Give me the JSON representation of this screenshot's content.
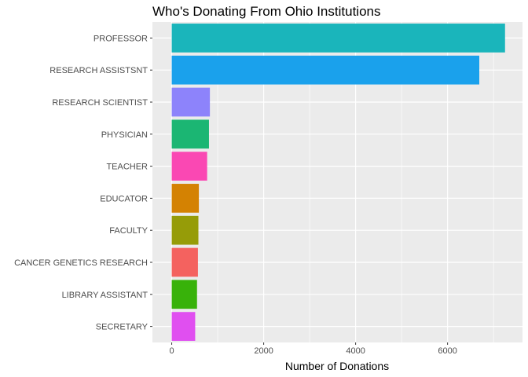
{
  "chart_data": {
    "type": "bar",
    "orientation": "horizontal",
    "title": "Who's Donating From Ohio Institutions",
    "xlabel": "Number of Donations",
    "ylabel": "",
    "xlim": [
      -420,
      7630
    ],
    "x_ticks": [
      0,
      2000,
      4000,
      6000
    ],
    "x_tick_labels": [
      "0",
      "2000",
      "4000",
      "6000"
    ],
    "grid": true,
    "legend": "none",
    "categories": [
      "PROFESSOR",
      "RESEARCH ASSISTSNT",
      "RESEARCH SCIENTIST",
      "PHYSICIAN",
      "TEACHER",
      "EDUCATOR",
      "FACULTY",
      "CANCER GENETICS RESEARCH",
      "LIBRARY ASSISTANT",
      "SECRETARY"
    ],
    "values": [
      7250,
      6690,
      830,
      810,
      770,
      590,
      580,
      570,
      550,
      510
    ],
    "colors": [
      "#1ab5bb",
      "#1aa1ec",
      "#8d83fb",
      "#1bb673",
      "#fa48b3",
      "#d48202",
      "#969c08",
      "#f4625f",
      "#38b20a",
      "#e04ff0"
    ]
  }
}
